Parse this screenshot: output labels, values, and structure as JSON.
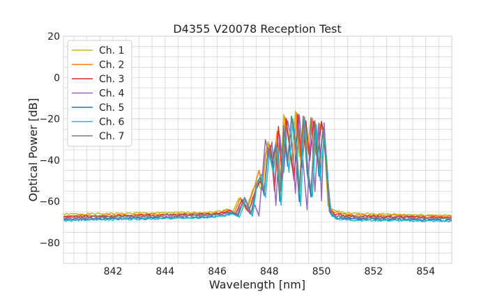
{
  "chart_data": {
    "type": "line",
    "title": "D4355 V20078 Reception Test",
    "xlabel": "Wavelength [nm]",
    "ylabel": "Optical Power [dB]",
    "xlim": [
      840.1,
      855.0
    ],
    "ylim": [
      -90,
      20
    ],
    "xticks": [
      842,
      844,
      846,
      848,
      850,
      852,
      854
    ],
    "xtick_labels": [
      "842",
      "844",
      "846",
      "848",
      "850",
      "852",
      "854"
    ],
    "yticks": [
      -80,
      -60,
      -40,
      -20,
      0,
      20
    ],
    "ytick_labels": [
      "−80",
      "−60",
      "−40",
      "−20",
      "0",
      "20"
    ],
    "x_minor_step": 0.5,
    "y_minor_step": 5,
    "grid": true,
    "legend": "top-left",
    "series": [
      {
        "name": "Ch. 1",
        "color": "#bcbd22",
        "floor": -66.8,
        "points": [
          [
            840.1,
            -66.2
          ],
          [
            845.8,
            -65.2
          ],
          [
            846.2,
            -64.5
          ],
          [
            846.4,
            -63.5
          ],
          [
            846.6,
            -65
          ],
          [
            846.85,
            -58
          ],
          [
            847.1,
            -64
          ],
          [
            847.35,
            -55
          ],
          [
            847.55,
            -50
          ],
          [
            847.7,
            -55
          ],
          [
            847.8,
            -40
          ],
          [
            847.95,
            -31
          ],
          [
            848.1,
            -43
          ],
          [
            848.25,
            -31
          ],
          [
            848.4,
            -58
          ],
          [
            848.55,
            -18
          ],
          [
            848.7,
            -27
          ],
          [
            848.85,
            -42
          ],
          [
            849.0,
            -16
          ],
          [
            849.15,
            -38
          ],
          [
            849.3,
            -20
          ],
          [
            849.45,
            -35
          ],
          [
            849.6,
            -19
          ],
          [
            849.75,
            -37
          ],
          [
            849.9,
            -22
          ],
          [
            850.05,
            -24
          ],
          [
            850.15,
            -40
          ],
          [
            850.25,
            -62
          ],
          [
            850.4,
            -64
          ],
          [
            851.0,
            -65.8
          ],
          [
            855.0,
            -66.8
          ]
        ]
      },
      {
        "name": "Ch. 2",
        "color": "#ff7f0e",
        "floor": -67.2,
        "points": [
          [
            840.1,
            -67
          ],
          [
            845.8,
            -65.8
          ],
          [
            846.2,
            -65
          ],
          [
            846.45,
            -64
          ],
          [
            846.65,
            -65.5
          ],
          [
            846.9,
            -58
          ],
          [
            847.15,
            -64.5
          ],
          [
            847.4,
            -54
          ],
          [
            847.6,
            -45
          ],
          [
            847.75,
            -52
          ],
          [
            847.85,
            -38
          ],
          [
            848.0,
            -32
          ],
          [
            848.15,
            -47
          ],
          [
            848.3,
            -26
          ],
          [
            848.45,
            -55
          ],
          [
            848.6,
            -19
          ],
          [
            848.75,
            -30
          ],
          [
            848.9,
            -45
          ],
          [
            849.05,
            -17
          ],
          [
            849.2,
            -40
          ],
          [
            849.35,
            -19
          ],
          [
            849.5,
            -37
          ],
          [
            849.65,
            -20
          ],
          [
            849.8,
            -38
          ],
          [
            849.95,
            -23
          ],
          [
            850.1,
            -27
          ],
          [
            850.2,
            -45
          ],
          [
            850.3,
            -63
          ],
          [
            850.45,
            -65
          ],
          [
            851.0,
            -66.5
          ],
          [
            855.0,
            -67.2
          ]
        ]
      },
      {
        "name": "Ch. 3",
        "color": "#d62728",
        "floor": -67.8,
        "points": [
          [
            840.1,
            -67.5
          ],
          [
            845.8,
            -66.2
          ],
          [
            846.25,
            -65.5
          ],
          [
            846.5,
            -64.5
          ],
          [
            846.7,
            -66
          ],
          [
            846.95,
            -59
          ],
          [
            847.2,
            -65
          ],
          [
            847.45,
            -55
          ],
          [
            847.65,
            -50
          ],
          [
            847.8,
            -56
          ],
          [
            847.9,
            -40
          ],
          [
            848.05,
            -33
          ],
          [
            848.2,
            -55
          ],
          [
            848.35,
            -24
          ],
          [
            848.5,
            -50
          ],
          [
            848.65,
            -20
          ],
          [
            848.8,
            -36
          ],
          [
            848.95,
            -50
          ],
          [
            849.1,
            -18
          ],
          [
            849.25,
            -44
          ],
          [
            849.4,
            -21
          ],
          [
            849.55,
            -40
          ],
          [
            849.7,
            -21
          ],
          [
            849.85,
            -40
          ],
          [
            850.0,
            -21
          ],
          [
            850.15,
            -32
          ],
          [
            850.25,
            -50
          ],
          [
            850.35,
            -64
          ],
          [
            850.5,
            -66
          ],
          [
            851.0,
            -67
          ],
          [
            855.0,
            -67.8
          ]
        ]
      },
      {
        "name": "Ch. 4",
        "color": "#9467bd",
        "floor": -68.5,
        "points": [
          [
            840.1,
            -68.5
          ],
          [
            845.8,
            -66.8
          ],
          [
            846.3,
            -66
          ],
          [
            846.55,
            -65
          ],
          [
            846.75,
            -66.5
          ],
          [
            847.0,
            -59.5
          ],
          [
            847.25,
            -66
          ],
          [
            847.45,
            -62
          ],
          [
            847.6,
            -67
          ],
          [
            847.75,
            -45
          ],
          [
            847.85,
            -30
          ],
          [
            848.0,
            -38
          ],
          [
            848.1,
            -31
          ],
          [
            848.25,
            -62
          ],
          [
            848.4,
            -28
          ],
          [
            848.55,
            -46
          ],
          [
            848.7,
            -21
          ],
          [
            848.85,
            -30
          ],
          [
            849.0,
            -56
          ],
          [
            849.15,
            -18
          ],
          [
            849.3,
            -42
          ],
          [
            849.45,
            -64
          ],
          [
            849.6,
            -20
          ],
          [
            849.75,
            -55
          ],
          [
            849.9,
            -22
          ],
          [
            850.0,
            -60
          ],
          [
            850.1,
            -22
          ],
          [
            850.2,
            -42
          ],
          [
            850.3,
            -65
          ],
          [
            850.5,
            -67
          ],
          [
            851.0,
            -68
          ],
          [
            855.0,
            -68.5
          ]
        ]
      },
      {
        "name": "Ch. 5",
        "color": "#1f77b4",
        "floor": -69.2,
        "points": [
          [
            840.1,
            -69
          ],
          [
            845.8,
            -67.5
          ],
          [
            846.3,
            -66.8
          ],
          [
            846.6,
            -65.5
          ],
          [
            846.8,
            -67
          ],
          [
            847.05,
            -58
          ],
          [
            847.3,
            -66.5
          ],
          [
            847.5,
            -53
          ],
          [
            847.65,
            -48
          ],
          [
            847.8,
            -57
          ],
          [
            847.95,
            -35
          ],
          [
            848.1,
            -43
          ],
          [
            848.25,
            -33
          ],
          [
            848.4,
            -60
          ],
          [
            848.55,
            -25
          ],
          [
            848.7,
            -43
          ],
          [
            848.85,
            -19
          ],
          [
            849.0,
            -33
          ],
          [
            849.15,
            -60
          ],
          [
            849.3,
            -19
          ],
          [
            849.45,
            -46
          ],
          [
            849.6,
            -58
          ],
          [
            849.75,
            -22
          ],
          [
            849.9,
            -48
          ],
          [
            850.05,
            -26
          ],
          [
            850.15,
            -37
          ],
          [
            850.25,
            -55
          ],
          [
            850.35,
            -66
          ],
          [
            850.55,
            -68
          ],
          [
            851.0,
            -68.5
          ],
          [
            855.0,
            -69.2
          ]
        ]
      },
      {
        "name": "Ch. 6",
        "color": "#17becf",
        "floor": -69.6,
        "points": [
          [
            840.1,
            -69.2
          ],
          [
            845.8,
            -67.8
          ],
          [
            846.3,
            -67
          ],
          [
            846.6,
            -66
          ],
          [
            846.85,
            -67.5
          ],
          [
            847.1,
            -59
          ],
          [
            847.35,
            -67
          ],
          [
            847.55,
            -50
          ],
          [
            847.7,
            -47
          ],
          [
            847.85,
            -58
          ],
          [
            848.0,
            -36
          ],
          [
            848.15,
            -46
          ],
          [
            848.3,
            -34
          ],
          [
            848.45,
            -62
          ],
          [
            848.6,
            -26
          ],
          [
            848.75,
            -46
          ],
          [
            848.9,
            -20
          ],
          [
            849.05,
            -34
          ],
          [
            849.2,
            -62
          ],
          [
            849.35,
            -20
          ],
          [
            849.5,
            -48
          ],
          [
            849.65,
            -58
          ],
          [
            849.8,
            -23
          ],
          [
            849.95,
            -50
          ],
          [
            850.1,
            -28
          ],
          [
            850.2,
            -40
          ],
          [
            850.3,
            -58
          ],
          [
            850.4,
            -67
          ],
          [
            850.6,
            -68.5
          ],
          [
            851.0,
            -69
          ],
          [
            855.0,
            -69.6
          ]
        ]
      },
      {
        "name": "Ch. 7",
        "color": "#7f7f7f",
        "floor": -68.2,
        "points": [
          [
            840.1,
            -67.9
          ],
          [
            845.8,
            -66.5
          ],
          [
            846.3,
            -65.8
          ],
          [
            846.55,
            -64.8
          ],
          [
            846.8,
            -66.2
          ],
          [
            847.05,
            -58.5
          ],
          [
            847.3,
            -65.5
          ],
          [
            847.5,
            -52
          ],
          [
            847.65,
            -49
          ],
          [
            847.8,
            -55
          ],
          [
            847.95,
            -34
          ],
          [
            848.1,
            -40
          ],
          [
            848.25,
            -32
          ],
          [
            848.4,
            -58
          ],
          [
            848.55,
            -23
          ],
          [
            848.7,
            -40
          ],
          [
            848.85,
            -20
          ],
          [
            849.0,
            -31
          ],
          [
            849.15,
            -55
          ],
          [
            849.3,
            -19
          ],
          [
            849.45,
            -42
          ],
          [
            849.6,
            -55
          ],
          [
            849.75,
            -21
          ],
          [
            849.9,
            -44
          ],
          [
            850.05,
            -25
          ],
          [
            850.15,
            -35
          ],
          [
            850.25,
            -53
          ],
          [
            850.35,
            -65
          ],
          [
            850.55,
            -67
          ],
          [
            851.0,
            -67.6
          ],
          [
            855.0,
            -68.2
          ]
        ]
      }
    ]
  }
}
